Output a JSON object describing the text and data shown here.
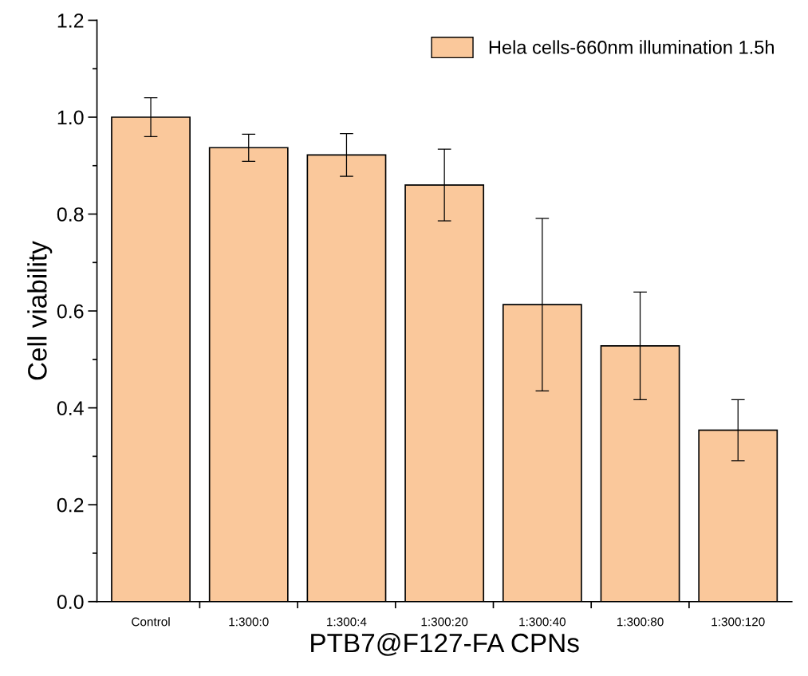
{
  "chart_data": {
    "type": "bar",
    "xlabel": "PTB7@F127-FA CPNs",
    "ylabel": "Cell viability",
    "categories": [
      "Control",
      "1:300:0",
      "1:300:4",
      "1:300:20",
      "1:300:40",
      "1:300:80",
      "1:300:120"
    ],
    "series": [
      {
        "name": "Hela cells-660nm illumination 1.5h",
        "color": "#fac89b",
        "values": [
          1.0,
          0.937,
          0.922,
          0.86,
          0.613,
          0.528,
          0.354
        ],
        "errors": [
          0.04,
          0.028,
          0.044,
          0.074,
          0.178,
          0.111,
          0.063
        ]
      }
    ],
    "ylim": [
      0,
      1.2
    ],
    "yticks": [
      {
        "value": 0,
        "label": "0.0"
      },
      {
        "value": 0.1,
        "label": null
      },
      {
        "value": 0.2,
        "label": "0.2"
      },
      {
        "value": 0.3,
        "label": null
      },
      {
        "value": 0.4,
        "label": "0.4"
      },
      {
        "value": 0.5,
        "label": null
      },
      {
        "value": 0.6,
        "label": "0.6"
      },
      {
        "value": 0.7,
        "label": null
      },
      {
        "value": 0.8,
        "label": "0.8"
      },
      {
        "value": 0.9,
        "label": null
      },
      {
        "value": 1.0,
        "label": "1.0"
      },
      {
        "value": 1.1,
        "label": null
      },
      {
        "value": 1.2,
        "label": "1.2"
      }
    ],
    "grid": false,
    "legend": "top right"
  }
}
